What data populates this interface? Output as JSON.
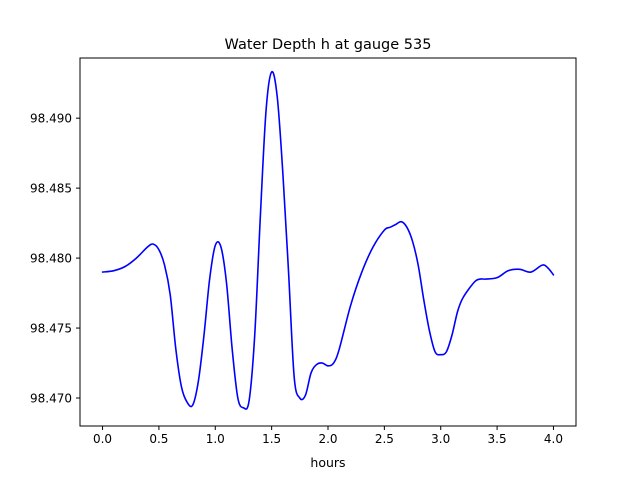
{
  "chart_data": {
    "type": "line",
    "title": "Water Depth h at gauge 535",
    "xlabel": "hours",
    "ylabel": "",
    "xlim": [
      -0.2,
      4.2
    ],
    "ylim": [
      98.468,
      98.4943
    ],
    "xticks": [
      0.0,
      0.5,
      1.0,
      1.5,
      2.0,
      2.5,
      3.0,
      3.5,
      4.0
    ],
    "xtick_labels": [
      "0.0",
      "0.5",
      "1.0",
      "1.5",
      "2.0",
      "2.5",
      "3.0",
      "3.5",
      "4.0"
    ],
    "yticks": [
      98.47,
      98.475,
      98.48,
      98.485,
      98.49
    ],
    "ytick_labels": [
      "98.470",
      "98.475",
      "98.480",
      "98.485",
      "98.490"
    ],
    "grid": false,
    "legend": "none",
    "series": [
      {
        "color": "#0000ff",
        "x": [
          0.0,
          0.1,
          0.2,
          0.3,
          0.4,
          0.45,
          0.5,
          0.55,
          0.6,
          0.65,
          0.7,
          0.75,
          0.8,
          0.85,
          0.9,
          0.95,
          1.0,
          1.05,
          1.1,
          1.15,
          1.2,
          1.25,
          1.3,
          1.35,
          1.4,
          1.45,
          1.5,
          1.55,
          1.6,
          1.65,
          1.7,
          1.75,
          1.8,
          1.85,
          1.9,
          1.95,
          2.0,
          2.05,
          2.1,
          2.2,
          2.3,
          2.4,
          2.5,
          2.55,
          2.6,
          2.65,
          2.7,
          2.75,
          2.8,
          2.85,
          2.9,
          2.95,
          3.0,
          3.05,
          3.1,
          3.15,
          3.2,
          3.3,
          3.35,
          3.4,
          3.5,
          3.6,
          3.7,
          3.8,
          3.9,
          3.95,
          4.0
        ],
        "y": [
          98.479,
          98.4791,
          98.4794,
          98.48,
          98.4808,
          98.481,
          98.4806,
          98.4795,
          98.4774,
          98.4735,
          98.4708,
          98.4697,
          98.4695,
          98.4712,
          98.4745,
          98.4785,
          98.4809,
          98.4808,
          98.4782,
          98.4735,
          98.47,
          98.4693,
          98.4698,
          98.4745,
          98.483,
          98.4905,
          98.4933,
          98.4915,
          98.486,
          98.479,
          98.4715,
          98.47,
          98.4702,
          98.4718,
          98.4724,
          98.4725,
          98.4723,
          98.4725,
          98.4735,
          98.4766,
          98.479,
          98.4808,
          98.482,
          98.4822,
          98.4824,
          98.4826,
          98.4822,
          98.4812,
          98.4795,
          98.477,
          98.4748,
          98.4733,
          98.4731,
          98.4733,
          98.4745,
          98.4762,
          98.4772,
          98.4783,
          98.4785,
          98.4785,
          98.4786,
          98.4791,
          98.4792,
          98.479,
          98.4795,
          98.4793,
          98.4788
        ]
      }
    ]
  }
}
